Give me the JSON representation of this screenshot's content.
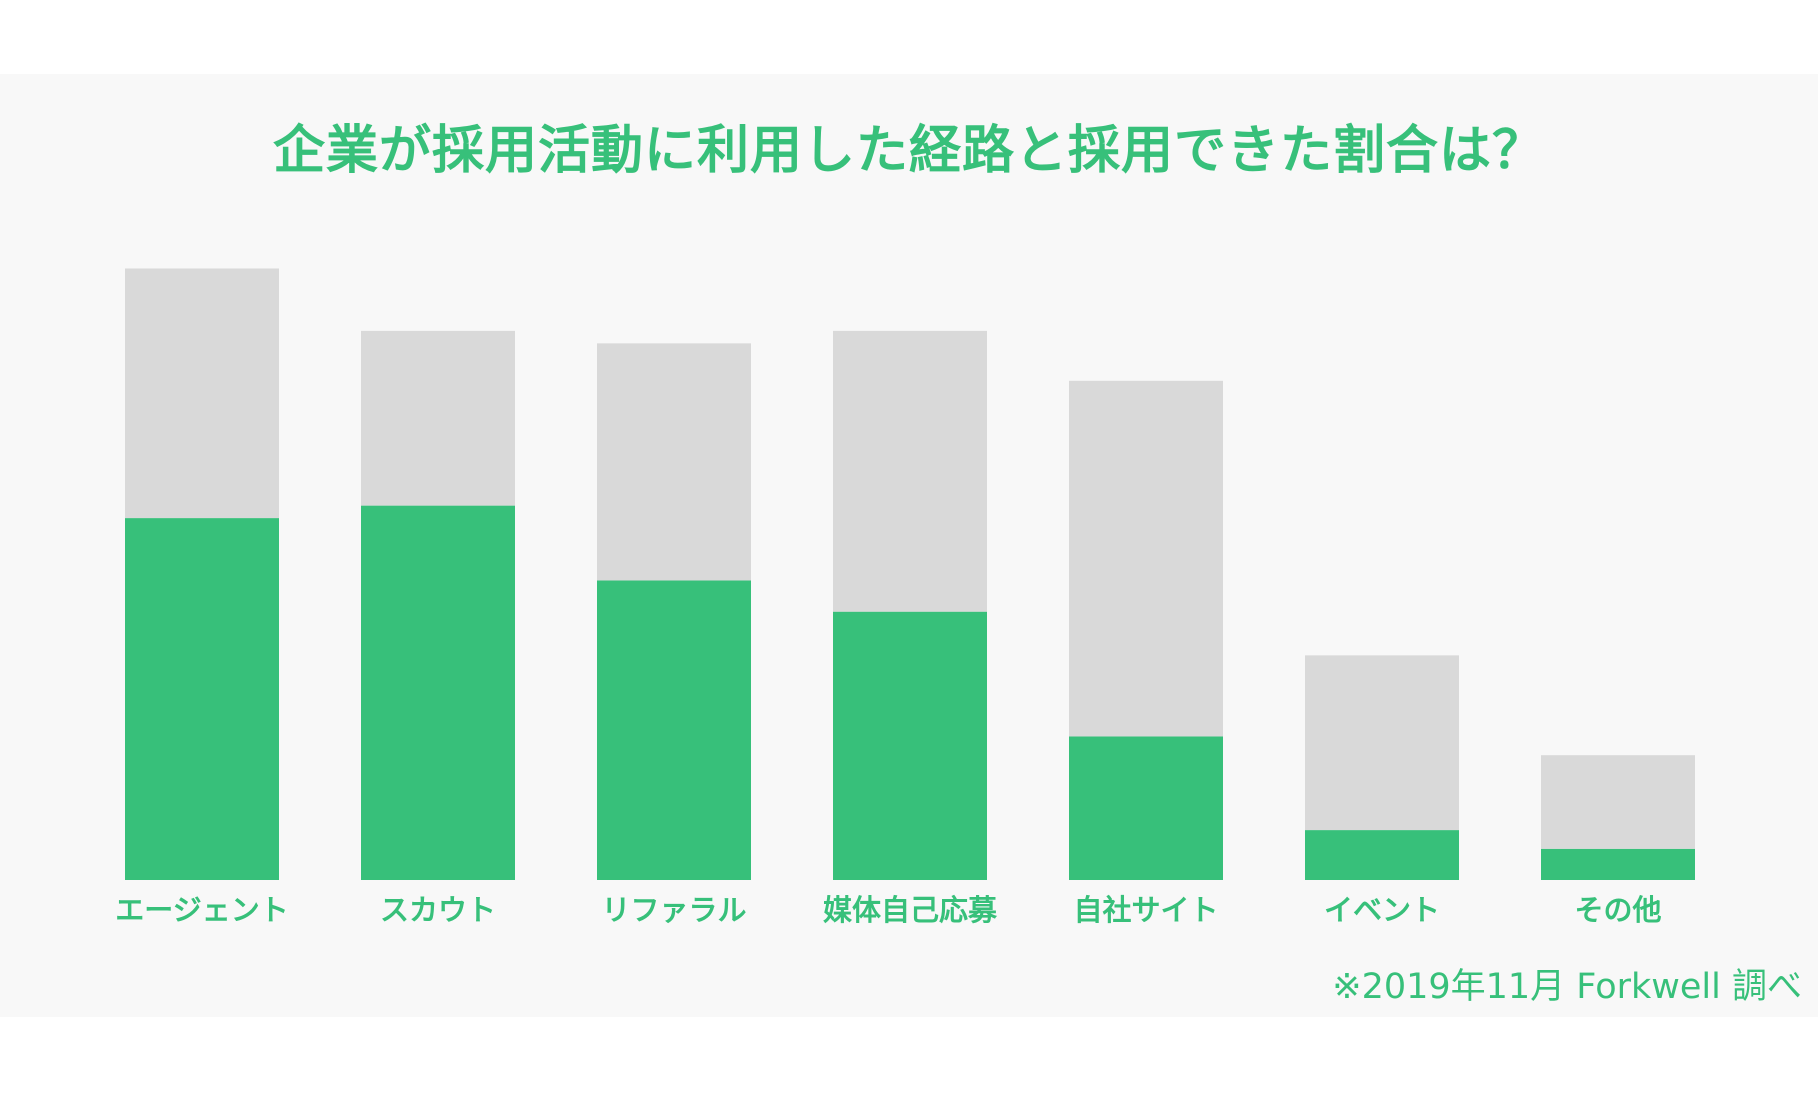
{
  "title": "企業が採用活動に利用した経路と採用できた割合は？",
  "source_note": "※2019年11月 Forkwell 調べ",
  "colors": {
    "hired": "#37c07a",
    "used": "#d9d9d9",
    "background": "#f8f8f8"
  },
  "chart_data": {
    "type": "bar",
    "stacked": true,
    "title": "企業が採用活動に利用した経路と採用できた割合は？",
    "categories": [
      "エージェント",
      "スカウト",
      "リファラル",
      "媒体自己応募",
      "自社サイト",
      "イベント",
      "その他"
    ],
    "series": [
      {
        "values": [
          58,
          60,
          48,
          43,
          23,
          8,
          5
        ],
        "color": "#37c07a"
      },
      {
        "values": [
          40,
          28,
          38,
          45,
          57,
          28,
          15
        ],
        "color": "#d9d9d9"
      }
    ],
    "ylim": [
      0,
      100
    ],
    "grid": false,
    "legend": "none"
  }
}
